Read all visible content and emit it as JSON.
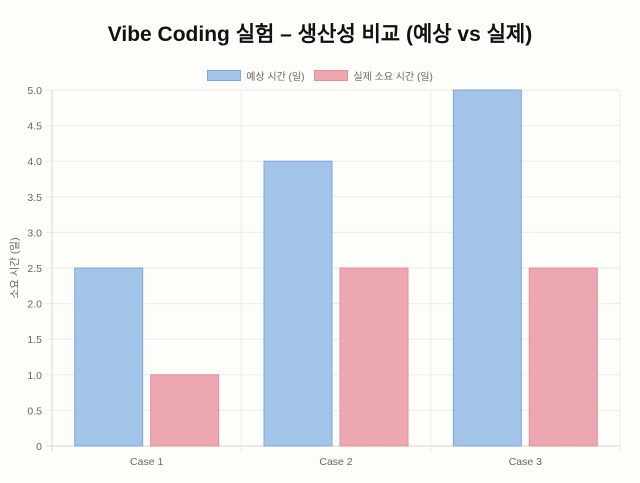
{
  "title": "Vibe Coding 실험 – 생산성 비교 (예상 vs 실제)",
  "legend": [
    {
      "label": "예상 시간 (일)",
      "fill": "#a3c4e9",
      "stroke": "#7ea8dc"
    },
    {
      "label": "실제 소요 시간 (일)",
      "fill": "#eda7b0",
      "stroke": "#e58e9a"
    }
  ],
  "yaxis_label": "소요 시간 (일)",
  "chart_data": {
    "type": "bar",
    "title": "Vibe Coding 실험 – 생산성 비교 (예상 vs 실제)",
    "categories": [
      "Case 1",
      "Case 2",
      "Case 3"
    ],
    "series": [
      {
        "name": "예상 시간 (일)",
        "values": [
          2.5,
          4.0,
          5.0
        ],
        "color": "#a3c4e9"
      },
      {
        "name": "실제 소요 시간 (일)",
        "values": [
          1.0,
          2.5,
          2.5
        ],
        "color": "#eda7b0"
      }
    ],
    "xlabel": "",
    "ylabel": "소요 시간 (일)",
    "ylim": [
      0,
      5.0
    ],
    "yticks": [
      "0",
      "0.5",
      "1.0",
      "1.5",
      "2.0",
      "2.5",
      "3.0",
      "3.5",
      "4.0",
      "4.5",
      "5.0"
    ],
    "grid": true,
    "legend_position": "top"
  }
}
